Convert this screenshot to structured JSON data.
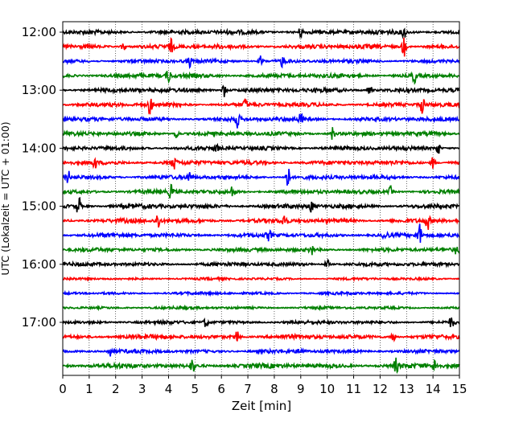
{
  "chart_data": {
    "type": "line",
    "title": "",
    "xlabel": "Zeit  [min]",
    "ylabel": "UTC (Lokalzeit = UTC + 01:00)",
    "xlim": [
      0,
      15
    ],
    "x_ticks": [
      "0",
      "1",
      "2",
      "3",
      "4",
      "5",
      "6",
      "7",
      "8",
      "9",
      "10",
      "11",
      "12",
      "13",
      "14",
      "15"
    ],
    "y_ticks": [
      "12:00",
      "13:00",
      "14:00",
      "15:00",
      "16:00",
      "17:00"
    ],
    "grid": "vertical dotted lines at each minute",
    "trace_interval_min": 15,
    "start_time": "12:00",
    "trace_colors": [
      "#000000",
      "#ff0000",
      "#0000ff",
      "#008000"
    ],
    "series": [
      {
        "time": "12:00",
        "color": "#000000",
        "amplitude": 0.14,
        "events": [
          {
            "x": 9.0,
            "amp": 0.35
          },
          {
            "x": 12.9,
            "amp": 0.4
          }
        ]
      },
      {
        "time": "12:15",
        "color": "#ff0000",
        "amplitude": 0.14,
        "events": [
          {
            "x": 2.3,
            "amp": 0.35
          },
          {
            "x": 4.1,
            "amp": 0.45
          },
          {
            "x": 12.9,
            "amp": 0.7
          }
        ]
      },
      {
        "time": "12:30",
        "color": "#0000ff",
        "amplitude": 0.12,
        "events": [
          {
            "x": 4.8,
            "amp": 0.35
          },
          {
            "x": 7.5,
            "amp": 0.4
          },
          {
            "x": 8.3,
            "amp": 0.35
          }
        ]
      },
      {
        "time": "12:45",
        "color": "#008000",
        "amplitude": 0.14,
        "events": [
          {
            "x": 4.0,
            "amp": 0.45
          },
          {
            "x": 13.3,
            "amp": 0.45
          }
        ]
      },
      {
        "time": "13:00",
        "color": "#000000",
        "amplitude": 0.14,
        "events": [
          {
            "x": 6.1,
            "amp": 0.45
          },
          {
            "x": 11.6,
            "amp": 0.5
          }
        ]
      },
      {
        "time": "13:15",
        "color": "#ff0000",
        "amplitude": 0.13,
        "events": [
          {
            "x": 3.3,
            "amp": 0.6
          },
          {
            "x": 6.9,
            "amp": 0.35
          },
          {
            "x": 13.6,
            "amp": 0.6
          }
        ]
      },
      {
        "time": "13:30",
        "color": "#0000ff",
        "amplitude": 0.13,
        "events": [
          {
            "x": 6.6,
            "amp": 0.55
          },
          {
            "x": 9.0,
            "amp": 0.35
          }
        ]
      },
      {
        "time": "13:45",
        "color": "#008000",
        "amplitude": 0.13,
        "events": [
          {
            "x": 4.3,
            "amp": 0.4
          },
          {
            "x": 10.2,
            "amp": 0.45
          }
        ]
      },
      {
        "time": "14:00",
        "color": "#000000",
        "amplitude": 0.13,
        "events": [
          {
            "x": 5.8,
            "amp": 0.3
          },
          {
            "x": 14.2,
            "amp": 0.4
          }
        ]
      },
      {
        "time": "14:15",
        "color": "#ff0000",
        "amplitude": 0.14,
        "events": [
          {
            "x": 1.2,
            "amp": 0.4
          },
          {
            "x": 4.2,
            "amp": 0.45
          },
          {
            "x": 14.0,
            "amp": 0.4
          }
        ]
      },
      {
        "time": "14:30",
        "color": "#0000ff",
        "amplitude": 0.13,
        "events": [
          {
            "x": 0.2,
            "amp": 0.45
          },
          {
            "x": 4.8,
            "amp": 0.4
          },
          {
            "x": 8.5,
            "amp": 0.85
          }
        ]
      },
      {
        "time": "14:45",
        "color": "#008000",
        "amplitude": 0.13,
        "events": [
          {
            "x": 4.1,
            "amp": 0.5
          },
          {
            "x": 6.4,
            "amp": 0.35
          },
          {
            "x": 12.4,
            "amp": 0.35
          }
        ]
      },
      {
        "time": "15:00",
        "color": "#000000",
        "amplitude": 0.14,
        "events": [
          {
            "x": 0.6,
            "amp": 0.75
          },
          {
            "x": 9.4,
            "amp": 0.35
          }
        ]
      },
      {
        "time": "15:15",
        "color": "#ff0000",
        "amplitude": 0.14,
        "events": [
          {
            "x": 3.6,
            "amp": 0.6
          },
          {
            "x": 8.4,
            "amp": 0.55
          },
          {
            "x": 13.8,
            "amp": 0.55
          }
        ]
      },
      {
        "time": "15:30",
        "color": "#0000ff",
        "amplitude": 0.13,
        "events": [
          {
            "x": 7.8,
            "amp": 0.35
          },
          {
            "x": 12.2,
            "amp": 0.4
          },
          {
            "x": 13.5,
            "amp": 0.75
          }
        ]
      },
      {
        "time": "15:45",
        "color": "#008000",
        "amplitude": 0.12,
        "events": [
          {
            "x": 9.4,
            "amp": 0.35
          },
          {
            "x": 14.9,
            "amp": 0.35
          }
        ]
      },
      {
        "time": "16:00",
        "color": "#000000",
        "amplitude": 0.12,
        "events": [
          {
            "x": 10.0,
            "amp": 0.35
          }
        ]
      },
      {
        "time": "16:15",
        "color": "#ff0000",
        "amplitude": 0.08,
        "events": []
      },
      {
        "time": "16:30",
        "color": "#0000ff",
        "amplitude": 0.09,
        "events": []
      },
      {
        "time": "16:45",
        "color": "#008000",
        "amplitude": 0.09,
        "events": []
      },
      {
        "time": "17:00",
        "color": "#000000",
        "amplitude": 0.11,
        "events": [
          {
            "x": 5.4,
            "amp": 0.3
          },
          {
            "x": 14.7,
            "amp": 0.35
          }
        ]
      },
      {
        "time": "17:15",
        "color": "#ff0000",
        "amplitude": 0.14,
        "events": [
          {
            "x": 6.6,
            "amp": 0.45
          },
          {
            "x": 12.5,
            "amp": 0.45
          }
        ]
      },
      {
        "time": "17:30",
        "color": "#0000ff",
        "amplitude": 0.12,
        "events": [
          {
            "x": 1.8,
            "amp": 0.3
          },
          {
            "x": 9.0,
            "amp": 0.3
          }
        ]
      },
      {
        "time": "17:45",
        "color": "#008000",
        "amplitude": 0.15,
        "events": [
          {
            "x": 4.9,
            "amp": 0.45
          },
          {
            "x": 12.6,
            "amp": 0.45
          },
          {
            "x": 14.1,
            "amp": 0.45
          }
        ]
      }
    ]
  }
}
